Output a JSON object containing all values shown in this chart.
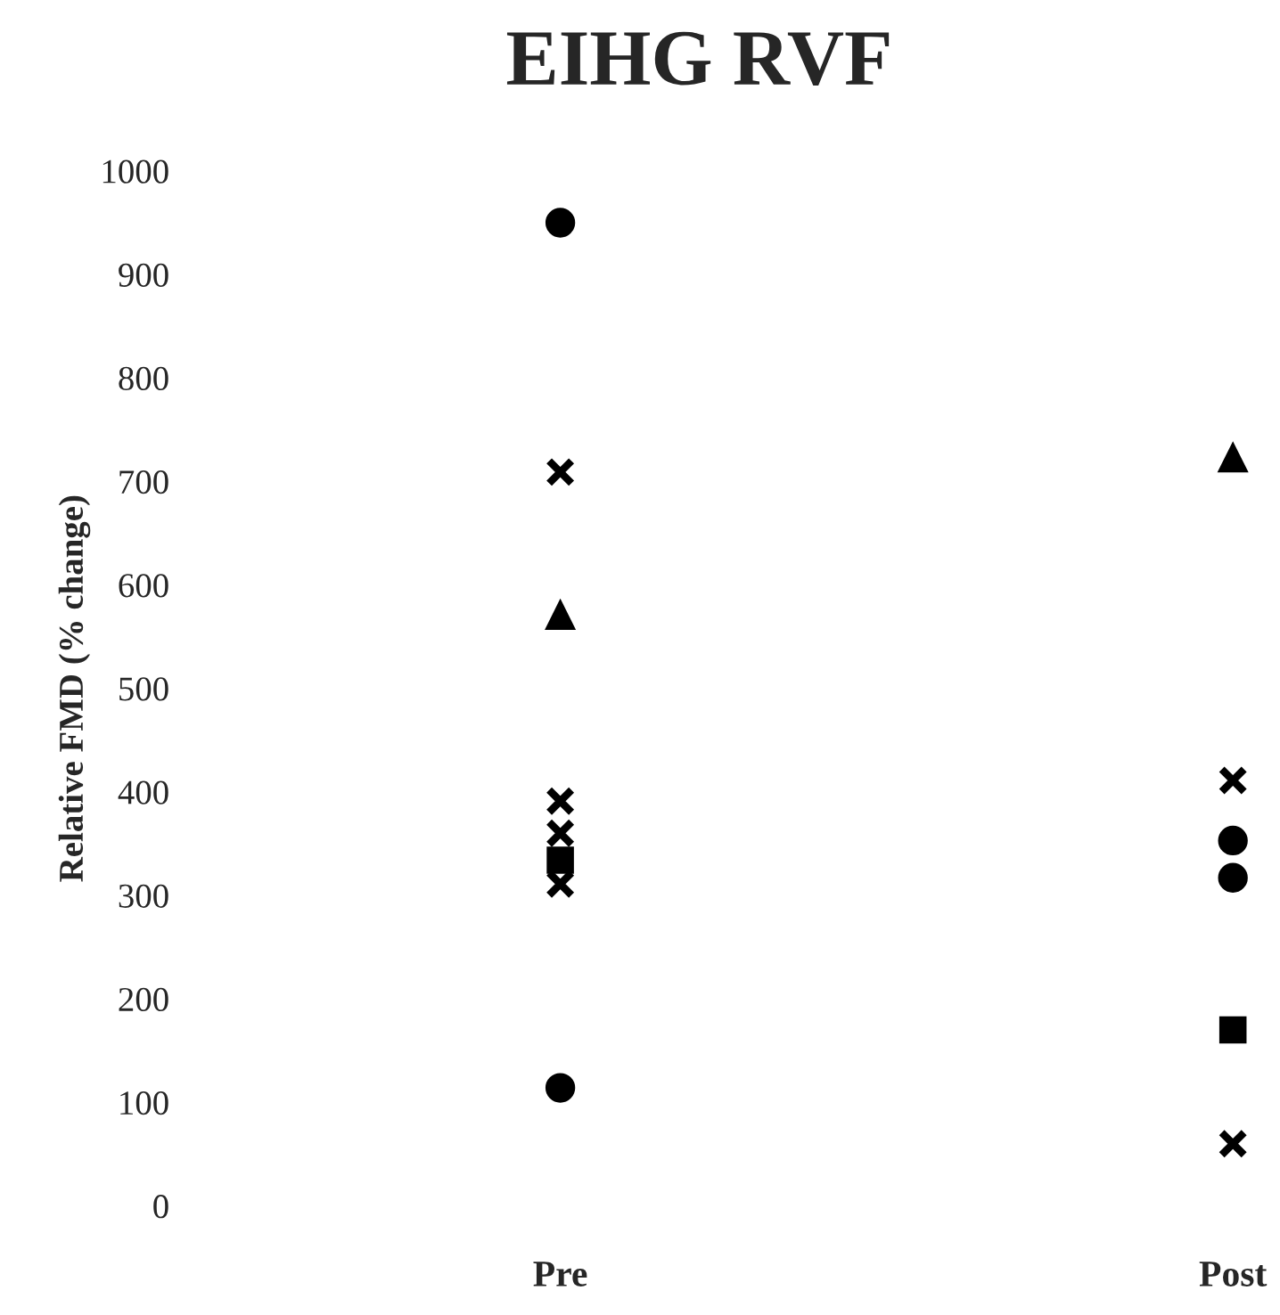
{
  "chart_data": {
    "type": "scatter",
    "title": "EIHG RVF",
    "ylabel": "Relative FMD (% change)",
    "categories": [
      "Pre",
      "Post"
    ],
    "ylim": [
      0,
      1000
    ],
    "yticks": [
      0,
      100,
      200,
      300,
      400,
      500,
      600,
      700,
      800,
      900,
      1000
    ],
    "grid": false,
    "series": [
      {
        "color": "#000000",
        "marker": "circle",
        "values": [
          950,
          353
        ]
      },
      {
        "color": "#000000",
        "marker": "circle",
        "values": [
          114,
          317
        ]
      },
      {
        "color": "#000000",
        "marker": "triangle",
        "values": [
          571,
          723
        ]
      },
      {
        "color": "#000000",
        "marker": "cross",
        "values": [
          391,
          60
        ]
      },
      {
        "color": "#000000",
        "marker": "cross",
        "values": [
          360,
          411
        ]
      },
      {
        "color": "#000000",
        "marker": "square",
        "values": [
          334,
          170
        ]
      },
      {
        "color": "#000000",
        "marker": "cross",
        "values": [
          709,
          null
        ]
      },
      {
        "color": "#000000",
        "marker": "cross",
        "values": [
          311,
          null
        ]
      }
    ]
  }
}
